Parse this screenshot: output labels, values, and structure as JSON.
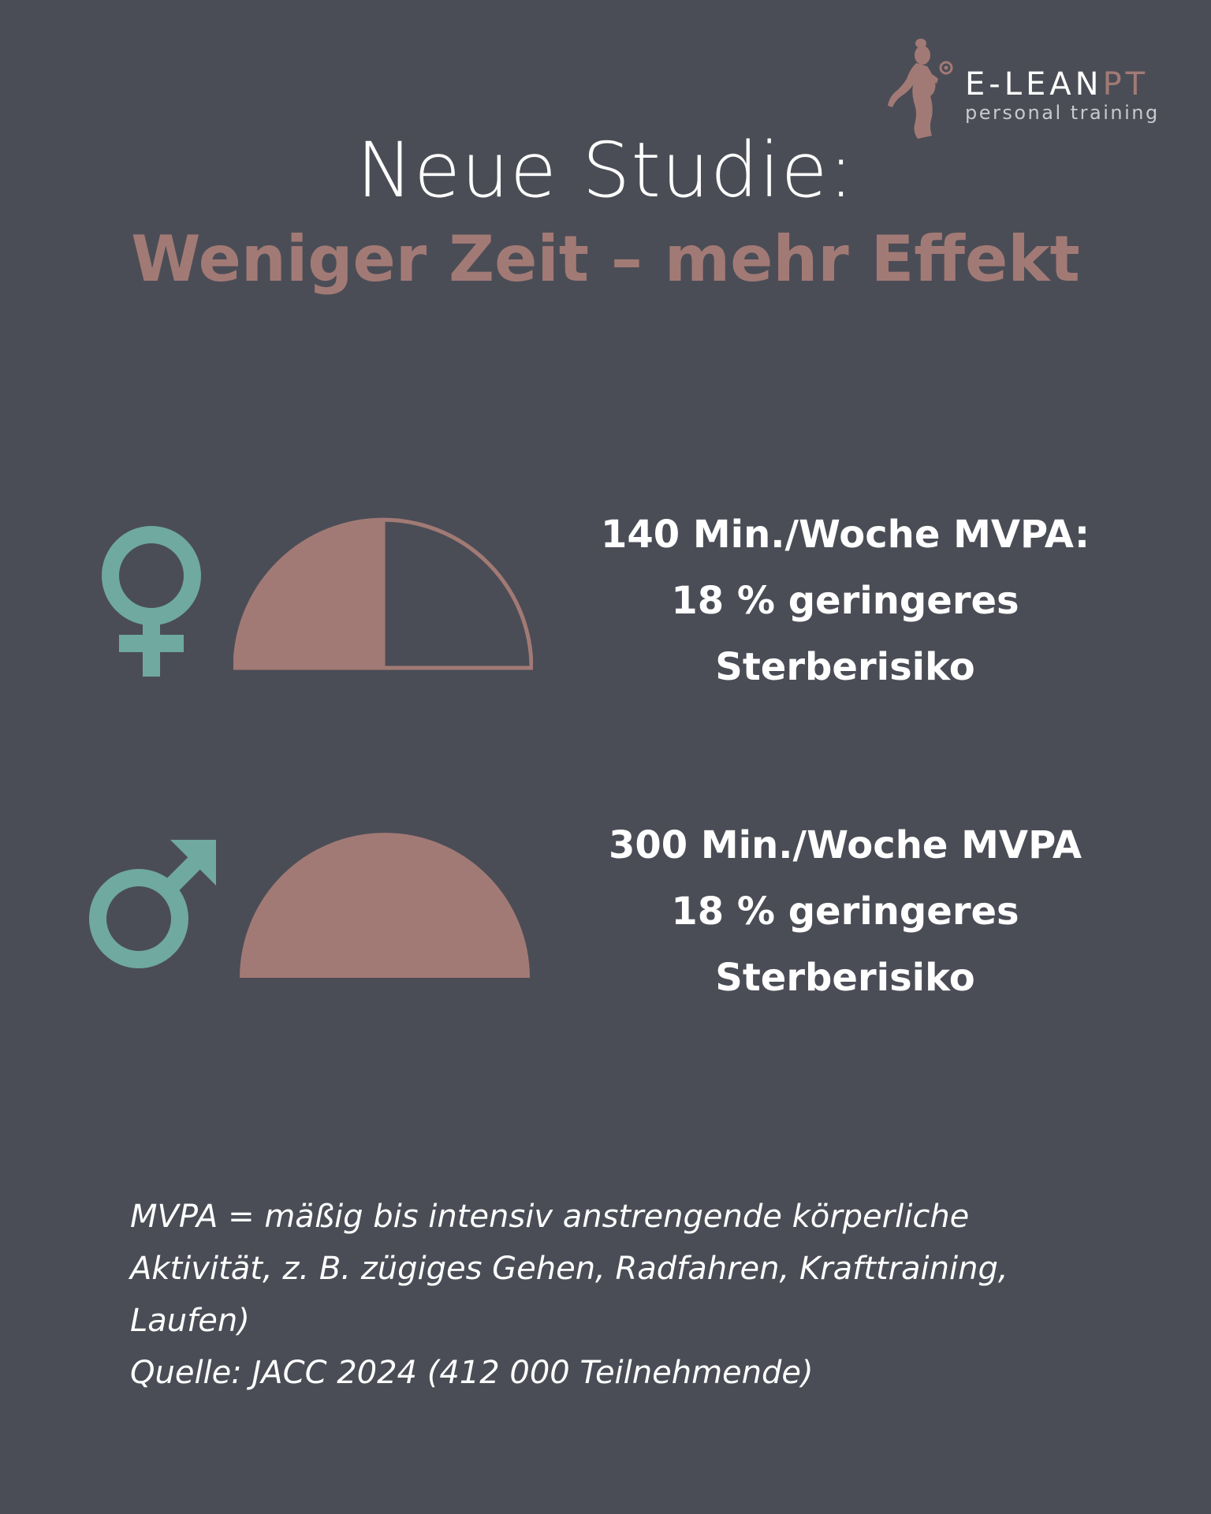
{
  "logo": {
    "brand_main": "E-LEAN",
    "brand_accent": "PT",
    "tagline": "personal training",
    "figure_icon": "woman-silhouette-icon"
  },
  "headline": {
    "line1": "Neue Studie:",
    "line2": "Weniger Zeit – mehr Effekt"
  },
  "colors": {
    "background": "#4b4d56",
    "accent_rose": "#a27a75",
    "symbol_teal": "#6fa9a0"
  },
  "rows": [
    {
      "gender_icon": "female-symbol-icon",
      "half_circle_filled_fraction": 0.5,
      "stat_lines": [
        "140 Min./Woche MVPA:",
        "18 % geringeres",
        "Sterberisiko"
      ]
    },
    {
      "gender_icon": "male-symbol-icon",
      "half_circle_filled_fraction": 1.0,
      "stat_lines": [
        "300 Min./Woche  MVPA",
        "18 % geringeres",
        "Sterberisiko"
      ]
    }
  ],
  "footnote": {
    "lines": [
      "MVPA = mäßig bis intensiv anstrengende körperliche",
      "Aktivität, z. B. zügiges Gehen, Radfahren, Krafttraining,",
      "Laufen)",
      "Quelle: JACC 2024 (412 000 Teilnehmende)"
    ]
  }
}
